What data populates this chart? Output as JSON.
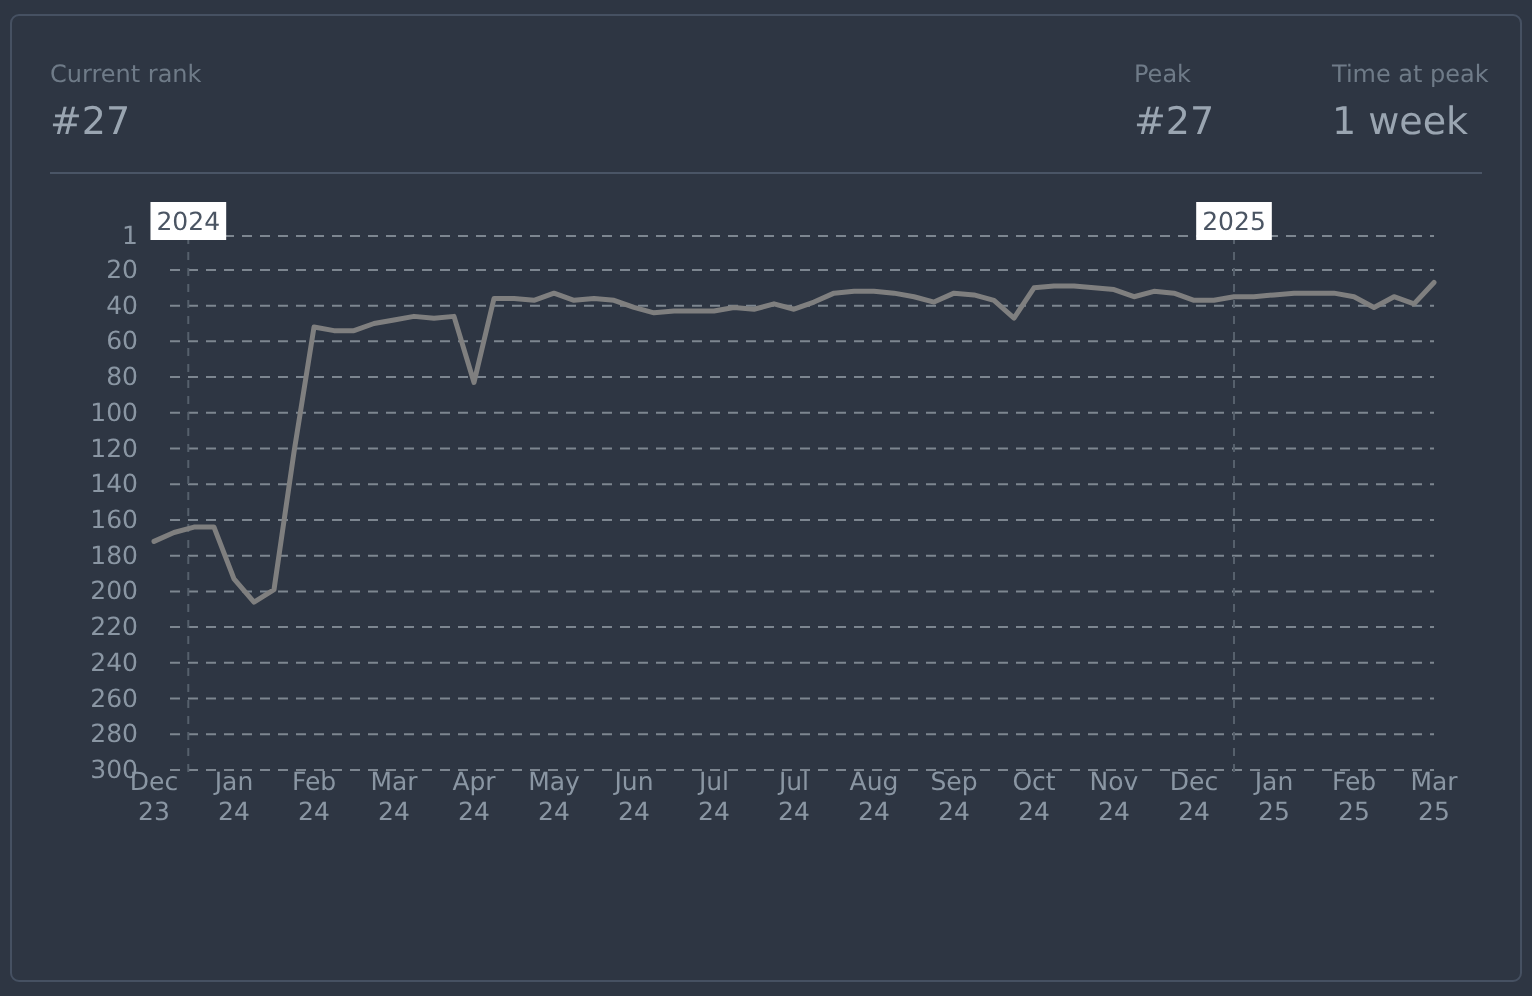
{
  "chart_data": {
    "type": "line",
    "annotations": [
      "Current rank",
      "#27",
      "Peak",
      "#27",
      "Time at peak",
      "1 week"
    ],
    "x": [
      "2023-12-20",
      "2023-12-27",
      "2024-01-03",
      "2024-01-10",
      "2024-01-17",
      "2024-01-24",
      "2024-01-31",
      "2024-02-07",
      "2024-02-14",
      "2024-02-21",
      "2024-02-28",
      "2024-03-06",
      "2024-03-13",
      "2024-03-20",
      "2024-03-27",
      "2024-04-03",
      "2024-04-10",
      "2024-04-17",
      "2024-04-24",
      "2024-05-01",
      "2024-05-08",
      "2024-05-15",
      "2024-05-22",
      "2024-05-29",
      "2024-06-05",
      "2024-06-12",
      "2024-06-19",
      "2024-06-26",
      "2024-07-03",
      "2024-07-10",
      "2024-07-17",
      "2024-07-24",
      "2024-07-31",
      "2024-08-07",
      "2024-08-14",
      "2024-08-21",
      "2024-08-28",
      "2024-09-04",
      "2024-09-11",
      "2024-09-18",
      "2024-09-25",
      "2024-10-02",
      "2024-10-09",
      "2024-10-16",
      "2024-10-23",
      "2024-10-30",
      "2024-11-06",
      "2024-11-13",
      "2024-11-20",
      "2024-11-27",
      "2024-12-04",
      "2024-12-11",
      "2024-12-18",
      "2024-12-25",
      "2025-01-01",
      "2025-01-08",
      "2025-01-15",
      "2025-01-22",
      "2025-01-29",
      "2025-02-05",
      "2025-02-12",
      "2025-02-19",
      "2025-02-26",
      "2025-03-05",
      "2025-03-12"
    ],
    "series": [
      {
        "color": "#7f7f7f",
        "values": [
          172,
          167,
          164,
          164,
          193,
          206,
          199,
          122,
          52,
          54,
          54,
          50,
          48,
          46,
          47,
          46,
          83,
          36,
          36,
          37,
          33,
          37,
          36,
          37,
          41,
          44,
          43,
          43,
          43,
          41,
          42,
          39,
          42,
          38,
          33,
          32,
          32,
          33,
          35,
          38,
          33,
          34,
          37,
          47,
          30,
          29,
          29,
          30,
          31,
          35,
          32,
          33,
          37,
          37,
          35,
          35,
          34,
          33,
          33,
          33,
          35,
          41,
          35,
          39,
          27
        ]
      }
    ],
    "xlim": [
      "2023-12-20",
      "2025-03-12"
    ],
    "xticks": [
      {
        "value": "2023-12-20",
        "label": "Dec 23"
      },
      {
        "value": "2024-01-17",
        "label": "Jan 24"
      },
      {
        "value": "2024-02-14",
        "label": "Feb 24"
      },
      {
        "value": "2024-03-13",
        "label": "Mar 24"
      },
      {
        "value": "2024-04-10",
        "label": "Apr 24"
      },
      {
        "value": "2024-05-08",
        "label": "May 24"
      },
      {
        "value": "2024-06-05",
        "label": "Jun 24"
      },
      {
        "value": "2024-07-03",
        "label": "Jul 24"
      },
      {
        "value": "2024-07-31",
        "label": "Jul 24"
      },
      {
        "value": "2024-08-28",
        "label": "Aug 24"
      },
      {
        "value": "2024-09-25",
        "label": "Sep 24"
      },
      {
        "value": "2024-10-23",
        "label": "Oct 24"
      },
      {
        "value": "2024-11-20",
        "label": "Nov 24"
      },
      {
        "value": "2024-12-18",
        "label": "Dec 24"
      },
      {
        "value": "2025-01-15",
        "label": "Jan 25"
      },
      {
        "value": "2025-02-12",
        "label": "Feb 25"
      },
      {
        "value": "2025-03-12",
        "label": "Mar 25"
      }
    ],
    "ylim": [
      300,
      1
    ],
    "yticks": [
      1,
      20,
      40,
      60,
      80,
      100,
      120,
      140,
      160,
      180,
      200,
      220,
      240,
      260,
      280,
      300
    ],
    "grid": "y",
    "marker": "none",
    "line_style": "solid",
    "ref_lines": [
      {
        "axis": "x",
        "value": "2024-01-01",
        "label": "2024",
        "line_style": "dashed"
      },
      {
        "axis": "x",
        "value": "2025-01-01",
        "label": "2025",
        "line_style": "dashed"
      }
    ]
  }
}
